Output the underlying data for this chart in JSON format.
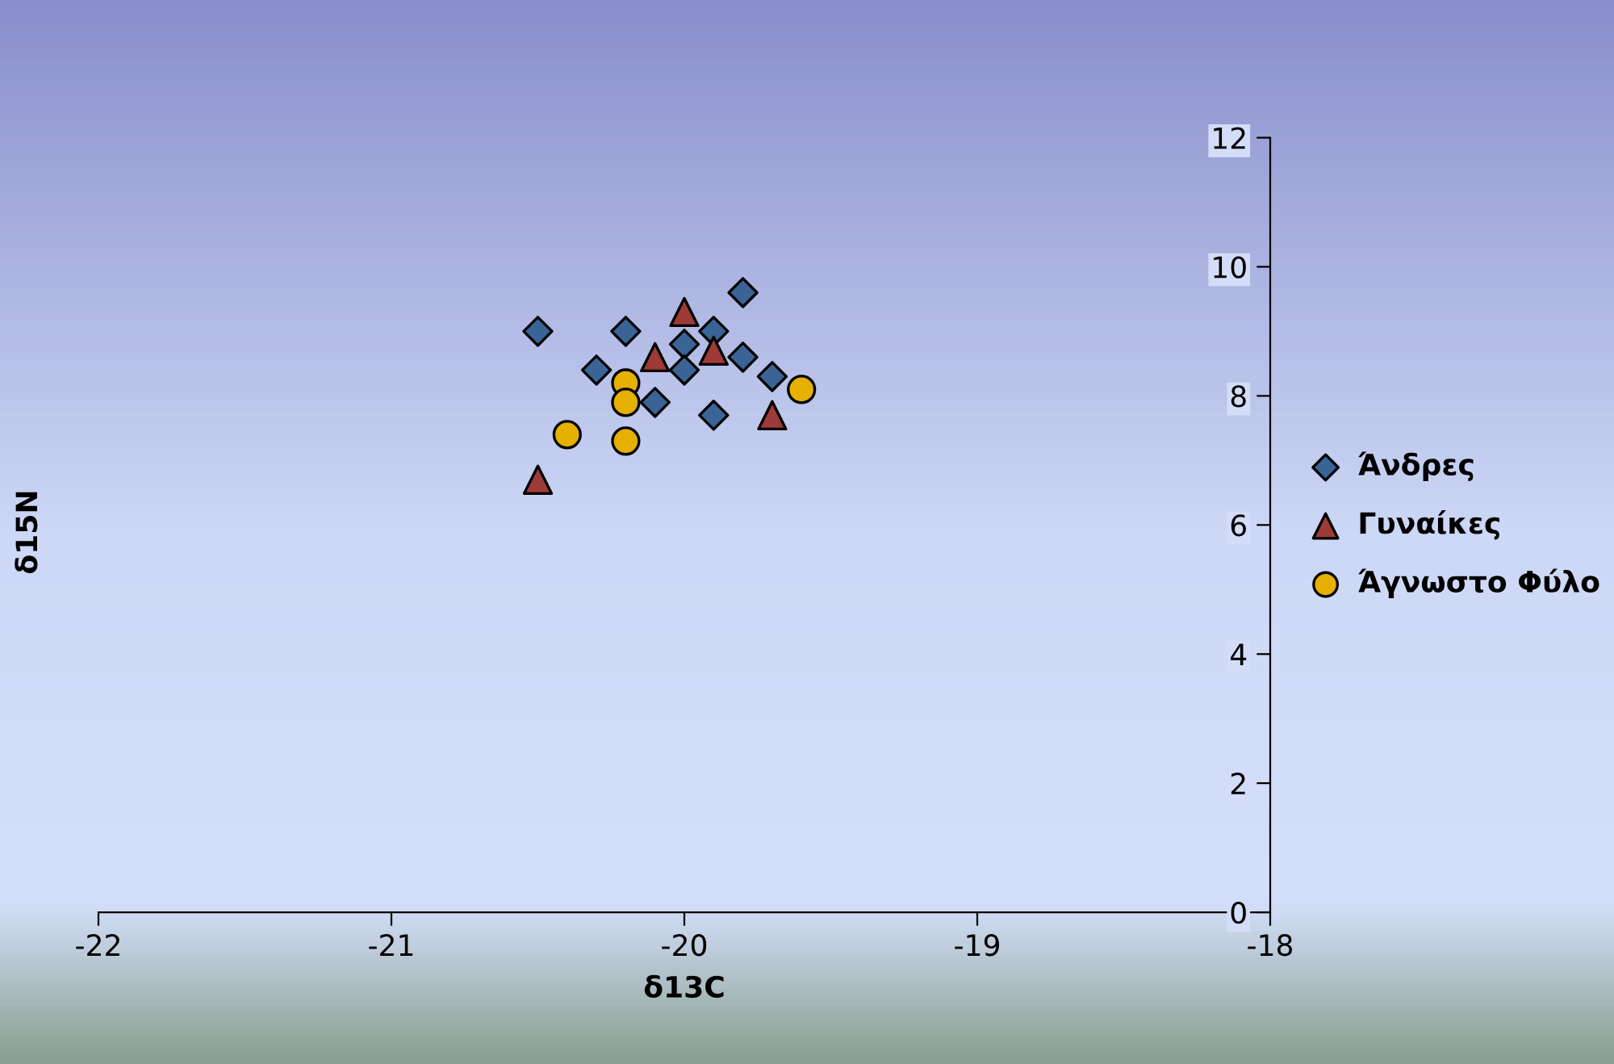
{
  "chart_data": {
    "type": "scatter",
    "xlabel": "δ13C",
    "ylabel": "δ15N",
    "xlim": [
      -22,
      -18
    ],
    "xticks": [
      -22,
      -21,
      -20,
      -19,
      -18
    ],
    "ylim": [
      0,
      12
    ],
    "yticks": [
      0,
      2,
      4,
      6,
      8,
      10,
      12
    ],
    "grid": false,
    "legend": "right",
    "series": [
      {
        "name": "Άνδρες",
        "color": "#3a6496",
        "marker": "diamond",
        "x": [
          -20.5,
          -20.2,
          -20.3,
          -20.1,
          -20.0,
          -20.0,
          -19.9,
          -19.8,
          -19.8,
          -19.7,
          -19.9
        ],
        "values": [
          9.0,
          9.0,
          8.4,
          7.9,
          8.8,
          8.4,
          9.0,
          9.6,
          8.6,
          8.3,
          7.7
        ]
      },
      {
        "name": "Γυναίκες",
        "color": "#9e3a38",
        "marker": "triangle",
        "x": [
          -20.0,
          -20.1,
          -19.9,
          -19.7,
          -20.5
        ],
        "values": [
          9.3,
          8.6,
          8.7,
          7.7,
          6.7
        ]
      },
      {
        "name": "Άγνωστο Φύλο",
        "color": "#e6b000",
        "marker": "circle",
        "x": [
          -20.2,
          -20.2,
          -20.4,
          -20.2,
          -19.6
        ],
        "values": [
          8.2,
          7.9,
          7.4,
          7.3,
          8.1
        ]
      }
    ]
  }
}
